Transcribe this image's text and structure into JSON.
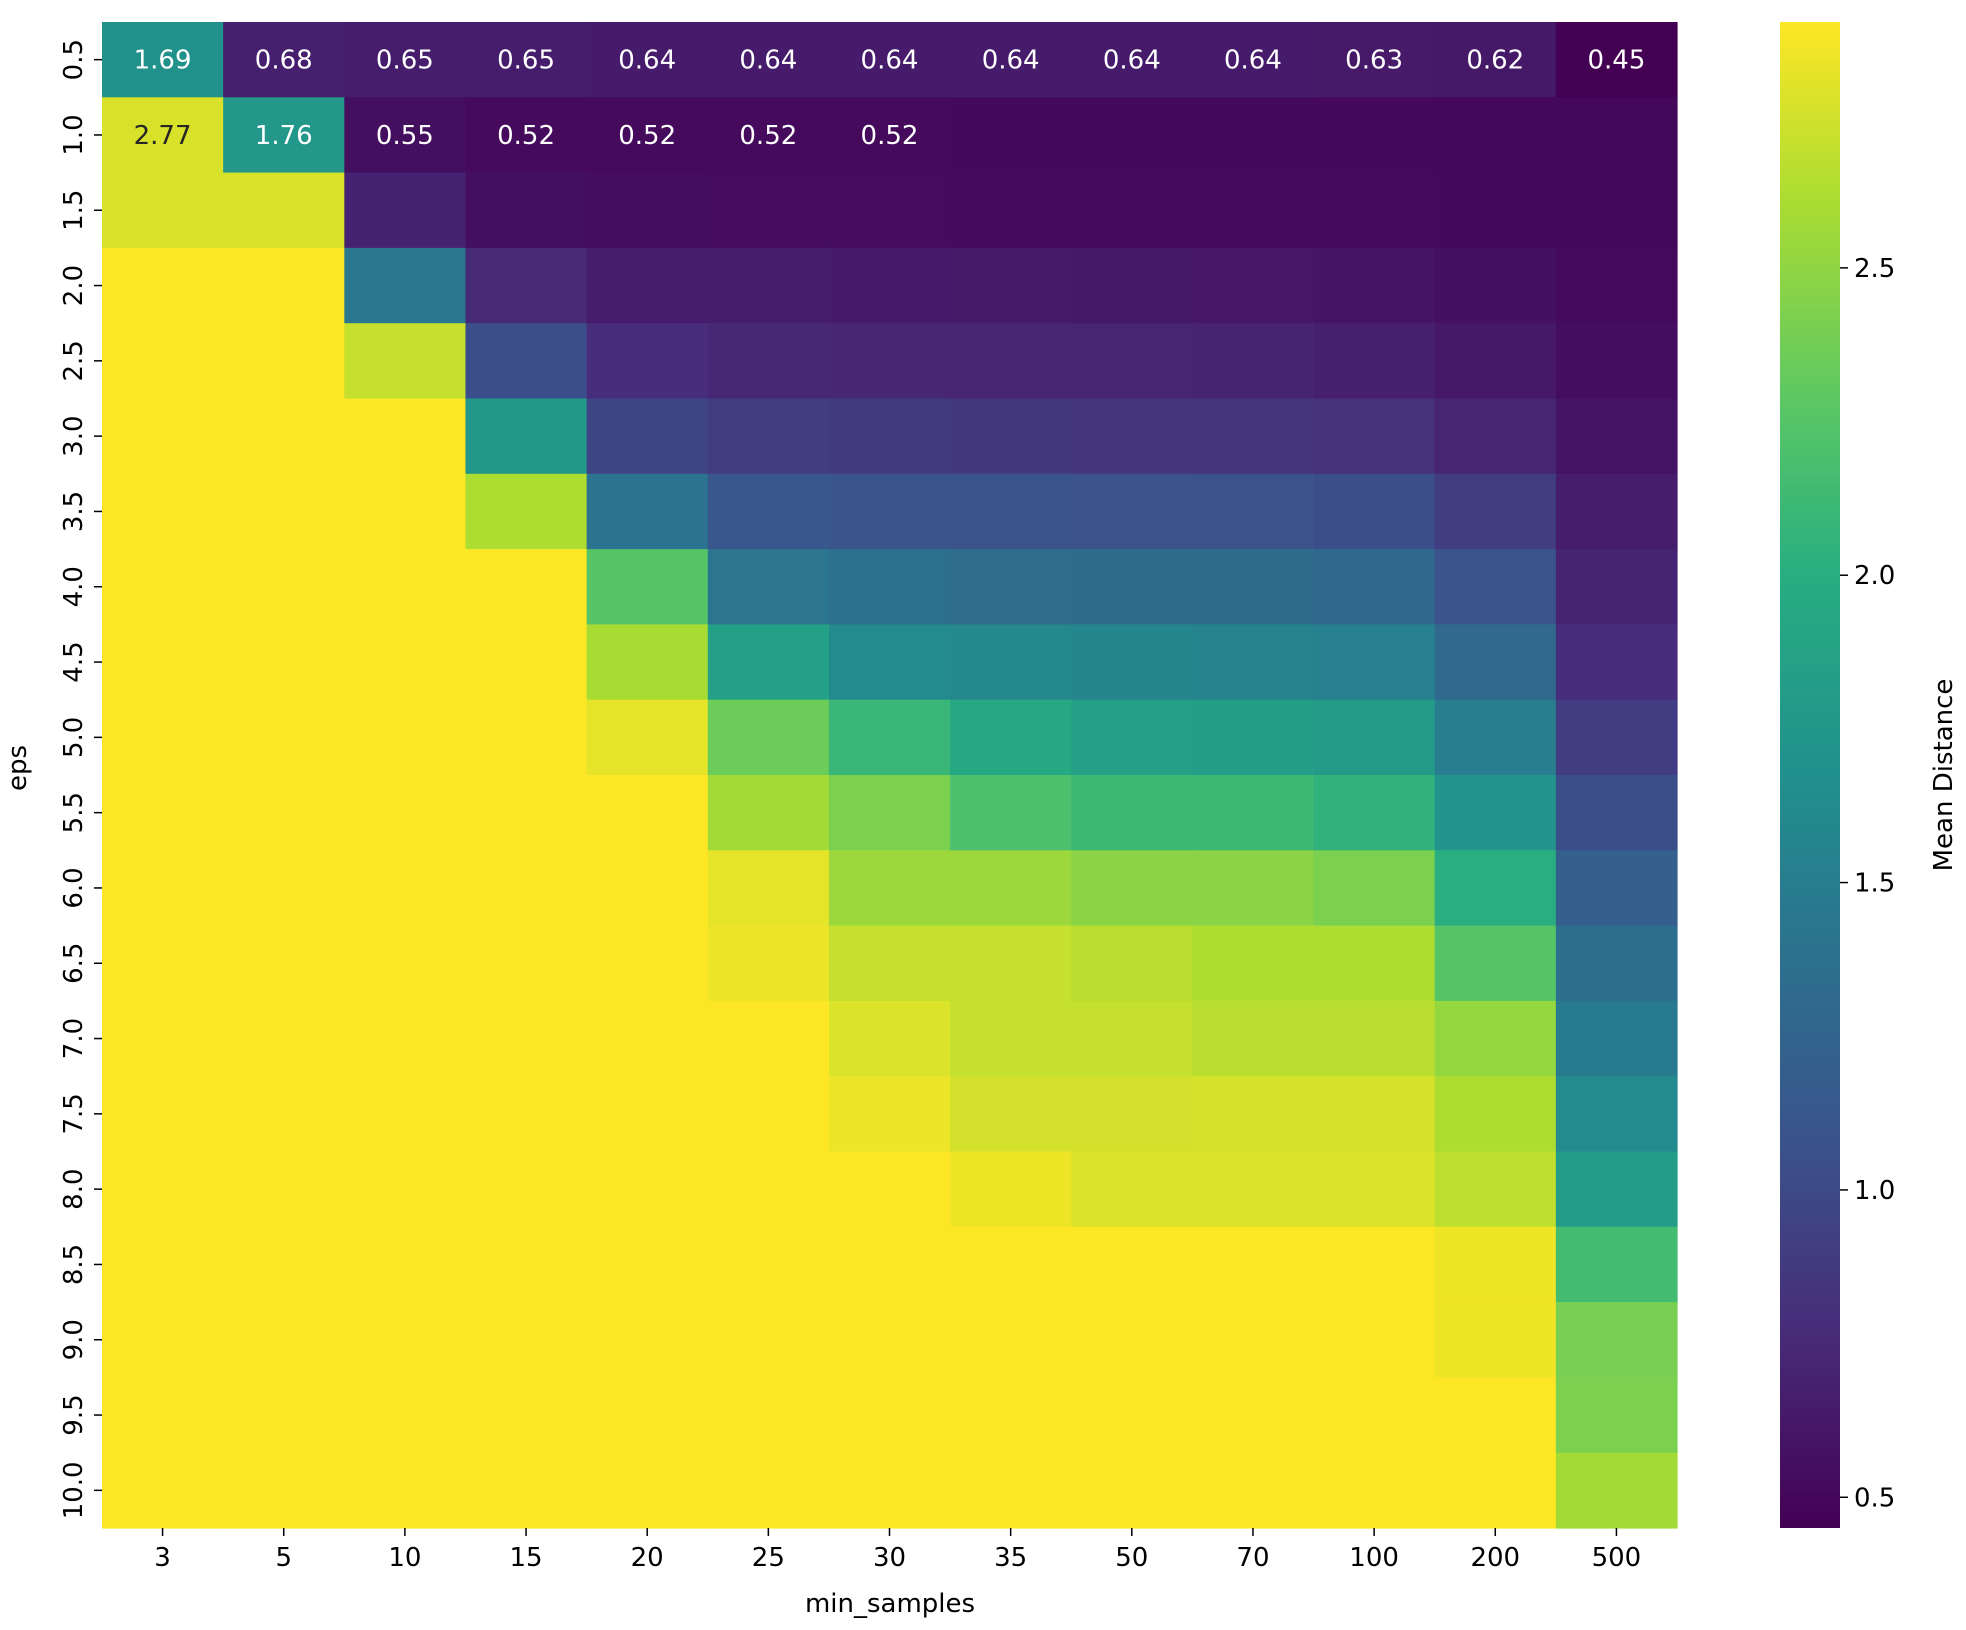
{
  "chart_data": {
    "type": "heatmap",
    "title": "",
    "xlabel": "min_samples",
    "ylabel": "eps",
    "colorbar_label": "Mean Distance",
    "colormap": "viridis",
    "vmin": 0.45,
    "vmax": 2.9,
    "colorbar_ticks": [
      "0.5",
      "1.0",
      "1.5",
      "2.0",
      "2.5"
    ],
    "x_categories": [
      "3",
      "5",
      "10",
      "15",
      "20",
      "25",
      "30",
      "35",
      "50",
      "70",
      "100",
      "200",
      "500"
    ],
    "y_categories": [
      "0.5",
      "1.0",
      "1.5",
      "2.0",
      "2.5",
      "3.0",
      "3.5",
      "4.0",
      "4.5",
      "5.0",
      "5.5",
      "6.0",
      "6.5",
      "7.0",
      "7.5",
      "8.0",
      "8.5",
      "9.0",
      "9.5",
      "10.0"
    ],
    "values": [
      [
        1.69,
        0.68,
        0.65,
        0.65,
        0.64,
        0.64,
        0.64,
        0.64,
        0.64,
        0.64,
        0.63,
        0.62,
        0.45
      ],
      [
        2.77,
        1.76,
        0.55,
        0.52,
        0.52,
        0.52,
        0.52,
        0.51,
        0.51,
        0.51,
        0.51,
        0.51,
        0.5
      ],
      [
        2.77,
        2.77,
        0.7,
        0.55,
        0.54,
        0.53,
        0.53,
        0.52,
        0.52,
        0.52,
        0.52,
        0.51,
        0.5
      ],
      [
        2.9,
        2.9,
        1.45,
        0.75,
        0.66,
        0.65,
        0.64,
        0.63,
        0.62,
        0.61,
        0.59,
        0.56,
        0.52
      ],
      [
        2.9,
        2.9,
        2.7,
        1.05,
        0.78,
        0.74,
        0.73,
        0.72,
        0.72,
        0.71,
        0.68,
        0.62,
        0.54
      ],
      [
        2.9,
        2.9,
        2.9,
        1.75,
        0.96,
        0.9,
        0.88,
        0.86,
        0.85,
        0.84,
        0.81,
        0.72,
        0.58
      ],
      [
        2.9,
        2.9,
        2.9,
        2.62,
        1.4,
        1.12,
        1.1,
        1.08,
        1.07,
        1.07,
        1.04,
        0.9,
        0.65
      ],
      [
        2.9,
        2.9,
        2.9,
        2.9,
        2.25,
        1.42,
        1.36,
        1.34,
        1.33,
        1.33,
        1.29,
        1.08,
        0.71
      ],
      [
        2.9,
        2.9,
        2.9,
        2.9,
        2.6,
        1.85,
        1.62,
        1.6,
        1.58,
        1.56,
        1.52,
        1.3,
        0.78
      ],
      [
        2.9,
        2.9,
        2.9,
        2.9,
        2.82,
        2.35,
        2.1,
        1.95,
        1.85,
        1.83,
        1.8,
        1.5,
        0.9
      ],
      [
        2.9,
        2.9,
        2.9,
        2.9,
        2.9,
        2.58,
        2.42,
        2.2,
        2.12,
        2.12,
        2.05,
        1.72,
        1.04
      ],
      [
        2.9,
        2.9,
        2.9,
        2.9,
        2.9,
        2.82,
        2.55,
        2.55,
        2.48,
        2.48,
        2.42,
        2.0,
        1.2
      ],
      [
        2.9,
        2.9,
        2.9,
        2.9,
        2.9,
        2.84,
        2.7,
        2.7,
        2.66,
        2.62,
        2.62,
        2.25,
        1.35
      ],
      [
        2.9,
        2.9,
        2.9,
        2.9,
        2.9,
        2.9,
        2.78,
        2.7,
        2.7,
        2.66,
        2.66,
        2.52,
        1.48
      ],
      [
        2.9,
        2.9,
        2.9,
        2.9,
        2.9,
        2.9,
        2.84,
        2.75,
        2.75,
        2.76,
        2.76,
        2.62,
        1.62
      ],
      [
        2.9,
        2.9,
        2.9,
        2.9,
        2.9,
        2.9,
        2.9,
        2.85,
        2.78,
        2.78,
        2.78,
        2.68,
        1.82
      ],
      [
        2.9,
        2.9,
        2.9,
        2.9,
        2.9,
        2.9,
        2.9,
        2.9,
        2.9,
        2.9,
        2.9,
        2.85,
        2.15
      ],
      [
        2.9,
        2.9,
        2.9,
        2.9,
        2.9,
        2.9,
        2.9,
        2.9,
        2.9,
        2.9,
        2.9,
        2.85,
        2.4
      ],
      [
        2.9,
        2.9,
        2.9,
        2.9,
        2.9,
        2.9,
        2.9,
        2.9,
        2.9,
        2.9,
        2.9,
        2.9,
        2.42
      ],
      [
        2.9,
        2.9,
        2.9,
        2.9,
        2.9,
        2.9,
        2.9,
        2.9,
        2.9,
        2.9,
        2.9,
        2.9,
        2.58
      ]
    ],
    "annotations": [
      [
        "1.69",
        "0.68",
        "0.65",
        "0.65",
        "0.64",
        "0.64",
        "0.64",
        "0.64",
        "0.64",
        "0.64",
        "0.63",
        "0.62",
        "0.45"
      ],
      [
        "2.77",
        "1.76",
        "0.55",
        "0.52",
        "0.52",
        "0.52",
        "0.52",
        "",
        "",
        "",
        "",
        "",
        ""
      ]
    ]
  }
}
